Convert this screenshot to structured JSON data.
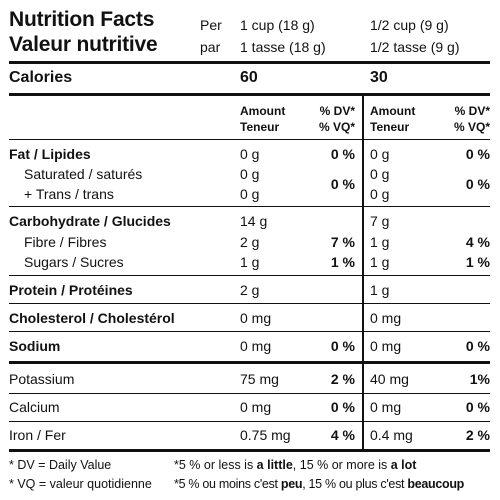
{
  "header": {
    "title_en": "Nutrition Facts",
    "title_fr": "Valeur nutritive",
    "per_en": "Per",
    "per_fr": "par",
    "serving1_en": "1 cup (18 g)",
    "serving1_fr": "1 tasse (18 g)",
    "serving2_en": "1/2 cup (9 g)",
    "serving2_fr": "1/2 tasse (9 g)"
  },
  "calories": {
    "label": "Calories",
    "value1": "60",
    "value2": "30"
  },
  "columns": {
    "amount": "Amount",
    "teneur": "Teneur",
    "dv": "% DV*",
    "vq": "% VQ*"
  },
  "nutrients": {
    "fat": {
      "label": "Fat / Lipides",
      "s1_amount": "0 g",
      "s1_dv": "0 %",
      "s2_amount": "0 g",
      "s2_dv": "0 %"
    },
    "saturated": {
      "label": "Saturated / saturés",
      "s1_amount": "0 g",
      "s2_amount": "0 g"
    },
    "trans": {
      "label": "+ Trans / trans",
      "s1_amount": "0 g",
      "s2_amount": "0 g"
    },
    "sat_trans_dv": {
      "s1": "0 %",
      "s2": "0 %"
    },
    "carb": {
      "label": "Carbohydrate / Glucides",
      "s1_amount": "14 g",
      "s2_amount": "7 g"
    },
    "fibre": {
      "label": "Fibre / Fibres",
      "s1_amount": "2 g",
      "s1_dv": "7 %",
      "s2_amount": "1 g",
      "s2_dv": "4 %"
    },
    "sugars": {
      "label": "Sugars / Sucres",
      "s1_amount": "1 g",
      "s1_dv": "1 %",
      "s2_amount": "1 g",
      "s2_dv": "1 %"
    },
    "protein": {
      "label": "Protein / Protéines",
      "s1_amount": "2 g",
      "s2_amount": "1 g"
    },
    "cholesterol": {
      "label": "Cholesterol / Cholestérol",
      "s1_amount": "0 mg",
      "s2_amount": "0 mg"
    },
    "sodium": {
      "label": "Sodium",
      "s1_amount": "0 mg",
      "s1_dv": "0 %",
      "s2_amount": "0 mg",
      "s2_dv": "0 %"
    },
    "potassium": {
      "label": "Potassium",
      "s1_amount": "75 mg",
      "s1_dv": "2 %",
      "s2_amount": "40 mg",
      "s2_dv": "1%"
    },
    "calcium": {
      "label": "Calcium",
      "s1_amount": "0 mg",
      "s1_dv": "0 %",
      "s2_amount": "0 mg",
      "s2_dv": "0 %"
    },
    "iron": {
      "label": "Iron / Fer",
      "s1_amount": "0.75 mg",
      "s1_dv": "4 %",
      "s2_amount": "0.4 mg",
      "s2_dv": "2 %"
    }
  },
  "footnotes": {
    "dv_def": "* DV = Daily Value",
    "vq_def": "* VQ = valeur quotidienne",
    "en_pre": "*5 % or less is ",
    "en_b1": "a little",
    "en_mid": ", 15 % or more is ",
    "en_b2": "a lot",
    "fr_pre": "*5 % ou moins c'est ",
    "fr_b1": "peu",
    "fr_mid": ", 15 % ou plus c'est ",
    "fr_b2": "beaucoup"
  }
}
